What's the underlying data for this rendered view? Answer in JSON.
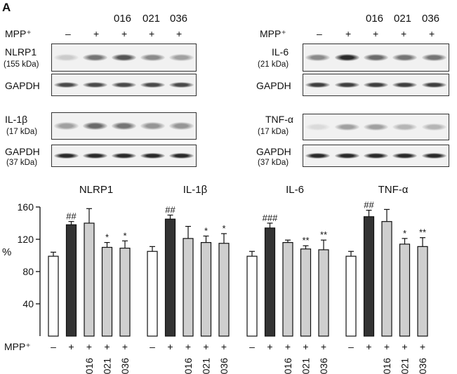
{
  "panel_label": "A",
  "blots": {
    "mpp_label": "MPP⁺",
    "compounds": [
      "016",
      "021",
      "036"
    ],
    "treatment_signs": [
      "–",
      "+",
      "+",
      "+",
      "+"
    ],
    "left": {
      "row1": {
        "name": "NLRP1",
        "size": "(155 kDa)"
      },
      "row2": {
        "name": "GAPDH",
        "size": ""
      },
      "row3": {
        "name": "IL-1β",
        "size": "(17 kDa)"
      },
      "row4": {
        "name": "GAPDH",
        "size": "(37 kDa)"
      }
    },
    "right": {
      "row1": {
        "name": "IL-6",
        "size": "(21 kDa)"
      },
      "row2": {
        "name": "GAPDH",
        "size": ""
      },
      "row3": {
        "name": "TNF-α",
        "size": "(17 kDa)"
      },
      "row4": {
        "name": "GAPDH",
        "size": "(37 kDa)"
      }
    },
    "band_intensity": {
      "NLRP1": [
        0.15,
        0.55,
        0.7,
        0.45,
        0.35
      ],
      "GAPDH_a": [
        0.75,
        0.75,
        0.75,
        0.75,
        0.75
      ],
      "IL-1b": [
        0.35,
        0.6,
        0.55,
        0.4,
        0.4
      ],
      "GAPDH_b": [
        0.9,
        0.9,
        0.9,
        0.9,
        0.9
      ],
      "IL-6": [
        0.45,
        0.9,
        0.6,
        0.55,
        0.55
      ],
      "GAPDH_c": [
        0.8,
        0.8,
        0.8,
        0.8,
        0.8
      ],
      "TNF-a": [
        0.08,
        0.35,
        0.35,
        0.25,
        0.25
      ],
      "GAPDH_d": [
        0.9,
        0.9,
        0.9,
        0.9,
        0.9
      ]
    }
  },
  "chart_data": {
    "type": "bar",
    "ylabel": "%",
    "ylim": [
      0,
      160
    ],
    "yticks": [
      40,
      80,
      120,
      160
    ],
    "x_axis_label": "MPP⁺",
    "categories": [
      "–",
      "+",
      "+ 016",
      "+ 021",
      "+ 036"
    ],
    "x_signs": [
      "–",
      "+",
      "+",
      "+",
      "+"
    ],
    "x_compounds": [
      "",
      "",
      "016",
      "021",
      "036"
    ],
    "colors": [
      "#ffffff",
      "#333333",
      "#cfcfcf",
      "#cfcfcf",
      "#cfcfcf"
    ],
    "groups": [
      {
        "name": "NLRP1",
        "values": [
          99,
          138,
          140,
          110,
          109
        ],
        "errors": [
          5,
          4,
          18,
          6,
          9
        ],
        "annotations": [
          "",
          "##",
          "",
          "*",
          "*"
        ]
      },
      {
        "name": "IL-1β",
        "values": [
          105,
          145,
          121,
          116,
          115
        ],
        "errors": [
          6,
          5,
          15,
          8,
          12
        ],
        "annotations": [
          "",
          "##",
          "",
          "*",
          "*"
        ]
      },
      {
        "name": "IL-6",
        "values": [
          99,
          134,
          116,
          108,
          107
        ],
        "errors": [
          6,
          6,
          3,
          4,
          12
        ],
        "annotations": [
          "",
          "###",
          "",
          "**",
          "**"
        ]
      },
      {
        "name": "TNF-α",
        "values": [
          99,
          148,
          142,
          114,
          111
        ],
        "errors": [
          6,
          8,
          15,
          7,
          11
        ],
        "annotations": [
          "",
          "##",
          "",
          "*",
          "**"
        ]
      }
    ]
  }
}
